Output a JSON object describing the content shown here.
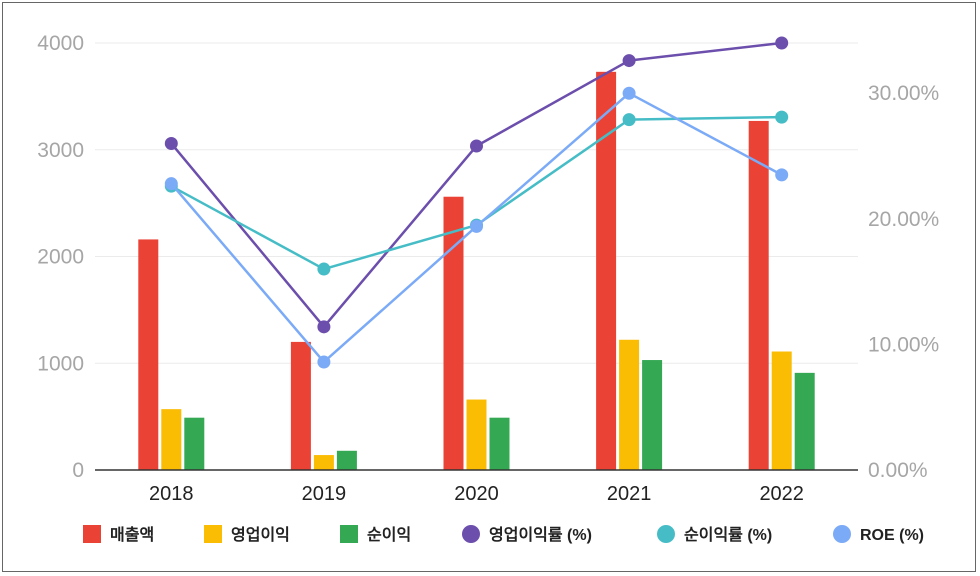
{
  "chart_data": {
    "type": "bar",
    "categories": [
      "2018",
      "2019",
      "2020",
      "2021",
      "2022"
    ],
    "y_left": {
      "ylim": [
        0,
        4000
      ],
      "ticks": [
        "0",
        "1000",
        "2000",
        "3000",
        "4000"
      ],
      "tick_values": [
        0,
        1000,
        2000,
        3000,
        4000
      ]
    },
    "y_right": {
      "ylim": [
        0,
        34
      ],
      "ticks": [
        "0.00%",
        "10.00%",
        "20.00%",
        "30.00%"
      ],
      "tick_values": [
        0,
        10,
        20,
        30
      ]
    },
    "bar_series": [
      {
        "name": "매출액",
        "color": "#ea4335",
        "values": [
          2160,
          1200,
          2560,
          3730,
          3270
        ]
      },
      {
        "name": "영업이익",
        "color": "#fbbc04",
        "values": [
          570,
          140,
          660,
          1220,
          1110
        ]
      },
      {
        "name": "순이익",
        "color": "#34a853",
        "values": [
          490,
          180,
          490,
          1030,
          910
        ]
      }
    ],
    "line_series": [
      {
        "name": "영업이익률 (%)",
        "color": "#6c4eac",
        "values": [
          26.0,
          11.4,
          25.8,
          32.6,
          34.0
        ]
      },
      {
        "name": "순이익률 (%)",
        "color": "#46bdc6",
        "values": [
          22.6,
          16.0,
          19.5,
          27.9,
          28.1
        ]
      },
      {
        "name": "ROE (%)",
        "color": "#7baaf7",
        "values": [
          22.8,
          8.6,
          19.4,
          30.0,
          23.5
        ]
      }
    ],
    "grid": true,
    "legend_position": "bottom"
  }
}
